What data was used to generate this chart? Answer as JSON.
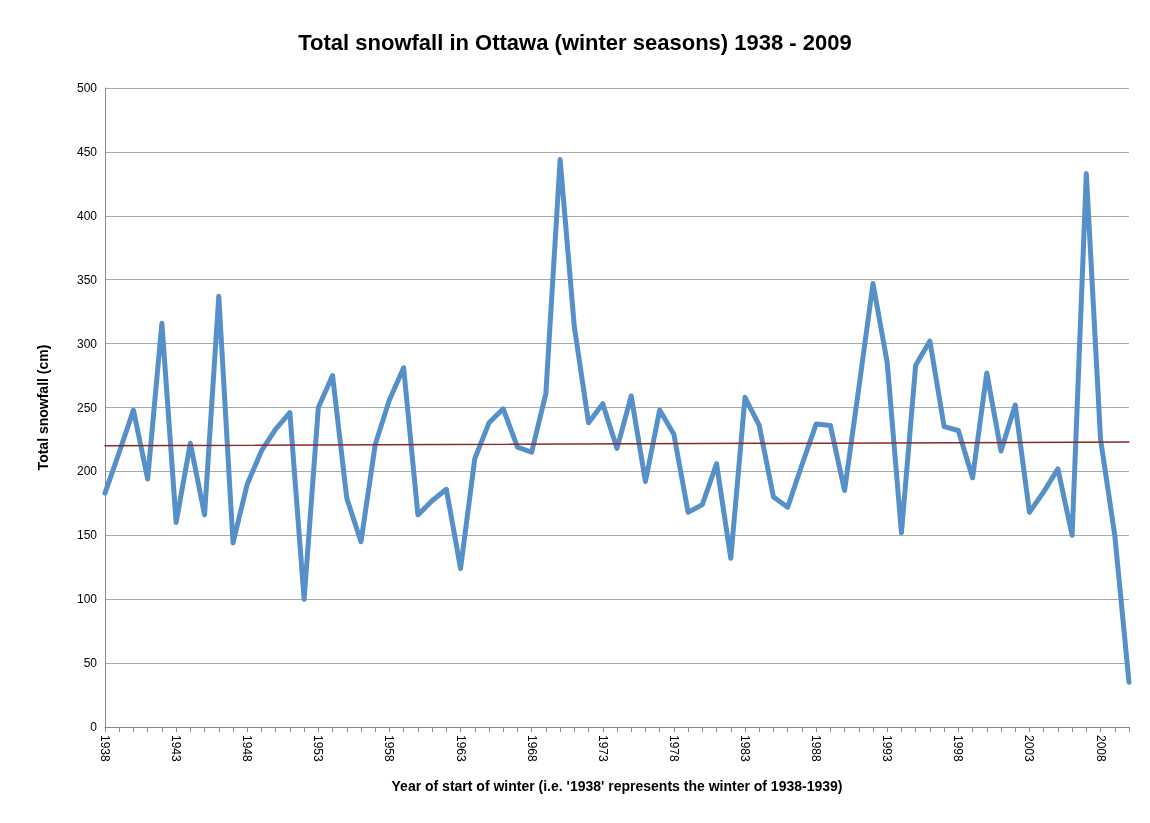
{
  "chart_data": {
    "type": "line",
    "title": "Total snowfall in Ottawa (winter seasons) 1938 - 2009",
    "xlabel": "Year of start of winter (i.e. '1938' represents the winter of 1938-1939)",
    "ylabel": "Total snowfall (cm)",
    "x": [
      1938,
      1939,
      1940,
      1941,
      1942,
      1943,
      1944,
      1945,
      1946,
      1947,
      1948,
      1949,
      1950,
      1951,
      1952,
      1953,
      1954,
      1955,
      1956,
      1957,
      1958,
      1959,
      1960,
      1961,
      1962,
      1963,
      1964,
      1965,
      1966,
      1967,
      1968,
      1969,
      1970,
      1971,
      1972,
      1973,
      1974,
      1975,
      1976,
      1977,
      1978,
      1979,
      1980,
      1981,
      1982,
      1983,
      1984,
      1985,
      1986,
      1987,
      1988,
      1989,
      1990,
      1991,
      1992,
      1993,
      1994,
      1995,
      1996,
      1997,
      1998,
      1999,
      2000,
      2001,
      2002,
      2003,
      2004,
      2005,
      2006,
      2007,
      2008,
      2009,
      2010
    ],
    "series": [
      {
        "color": "#5690c8",
        "values": [
          183,
          215,
          248,
          194,
          316,
          160,
          222,
          166,
          337,
          144,
          190,
          216,
          233,
          246,
          100,
          250,
          275,
          179,
          145,
          221,
          256,
          281,
          166,
          177,
          186,
          124,
          210,
          238,
          249,
          219,
          215,
          261,
          444,
          313,
          238,
          253,
          218,
          259,
          192,
          248,
          229,
          168,
          174,
          206,
          132,
          258,
          236,
          180,
          172,
          205,
          237,
          236,
          185,
          265,
          347,
          285,
          152,
          283,
          302,
          235,
          232,
          195,
          277,
          216,
          252,
          168,
          184,
          202,
          150,
          433,
          225,
          150,
          35
        ]
      },
      {
        "type": "line",
        "color": "#8b2a2a",
        "x": [
          1938,
          2010
        ],
        "values": [
          220,
          223
        ]
      }
    ],
    "xlim": [
      1938,
      2010
    ],
    "xticks": [
      1938,
      {
        "value": 1939,
        "label": null
      },
      {
        "value": 1940,
        "label": null
      },
      {
        "value": 1941,
        "label": null
      },
      {
        "value": 1942,
        "label": null
      },
      1943,
      {
        "value": 1944,
        "label": null
      },
      {
        "value": 1945,
        "label": null
      },
      {
        "value": 1946,
        "label": null
      },
      {
        "value": 1947,
        "label": null
      },
      1948,
      {
        "value": 1949,
        "label": null
      },
      {
        "value": 1950,
        "label": null
      },
      {
        "value": 1951,
        "label": null
      },
      {
        "value": 1952,
        "label": null
      },
      1953,
      {
        "value": 1954,
        "label": null
      },
      {
        "value": 1955,
        "label": null
      },
      {
        "value": 1956,
        "label": null
      },
      {
        "value": 1957,
        "label": null
      },
      1958,
      {
        "value": 1959,
        "label": null
      },
      {
        "value": 1960,
        "label": null
      },
      {
        "value": 1961,
        "label": null
      },
      {
        "value": 1962,
        "label": null
      },
      1963,
      {
        "value": 1964,
        "label": null
      },
      {
        "value": 1965,
        "label": null
      },
      {
        "value": 1966,
        "label": null
      },
      {
        "value": 1967,
        "label": null
      },
      1968,
      {
        "value": 1969,
        "label": null
      },
      {
        "value": 1970,
        "label": null
      },
      {
        "value": 1971,
        "label": null
      },
      {
        "value": 1972,
        "label": null
      },
      1973,
      {
        "value": 1974,
        "label": null
      },
      {
        "value": 1975,
        "label": null
      },
      {
        "value": 1976,
        "label": null
      },
      {
        "value": 1977,
        "label": null
      },
      1978,
      {
        "value": 1979,
        "label": null
      },
      {
        "value": 1980,
        "label": null
      },
      {
        "value": 1981,
        "label": null
      },
      {
        "value": 1982,
        "label": null
      },
      1983,
      {
        "value": 1984,
        "label": null
      },
      {
        "value": 1985,
        "label": null
      },
      {
        "value": 1986,
        "label": null
      },
      {
        "value": 1987,
        "label": null
      },
      1988,
      {
        "value": 1989,
        "label": null
      },
      {
        "value": 1990,
        "label": null
      },
      {
        "value": 1991,
        "label": null
      },
      {
        "value": 1992,
        "label": null
      },
      1993,
      {
        "value": 1994,
        "label": null
      },
      {
        "value": 1995,
        "label": null
      },
      {
        "value": 1996,
        "label": null
      },
      {
        "value": 1997,
        "label": null
      },
      1998,
      {
        "value": 1999,
        "label": null
      },
      {
        "value": 2000,
        "label": null
      },
      {
        "value": 2001,
        "label": null
      },
      {
        "value": 2002,
        "label": null
      },
      2003,
      {
        "value": 2004,
        "label": null
      },
      {
        "value": 2005,
        "label": null
      },
      {
        "value": 2006,
        "label": null
      },
      {
        "value": 2007,
        "label": null
      },
      2008,
      {
        "value": 2009,
        "label": null
      },
      {
        "value": 2010,
        "label": null
      }
    ],
    "ylim": [
      0,
      500
    ],
    "yticks": [
      0,
      50,
      100,
      150,
      200,
      250,
      300,
      350,
      400,
      450,
      500
    ],
    "grid": "y",
    "marker": "none",
    "line_style": "solid"
  }
}
